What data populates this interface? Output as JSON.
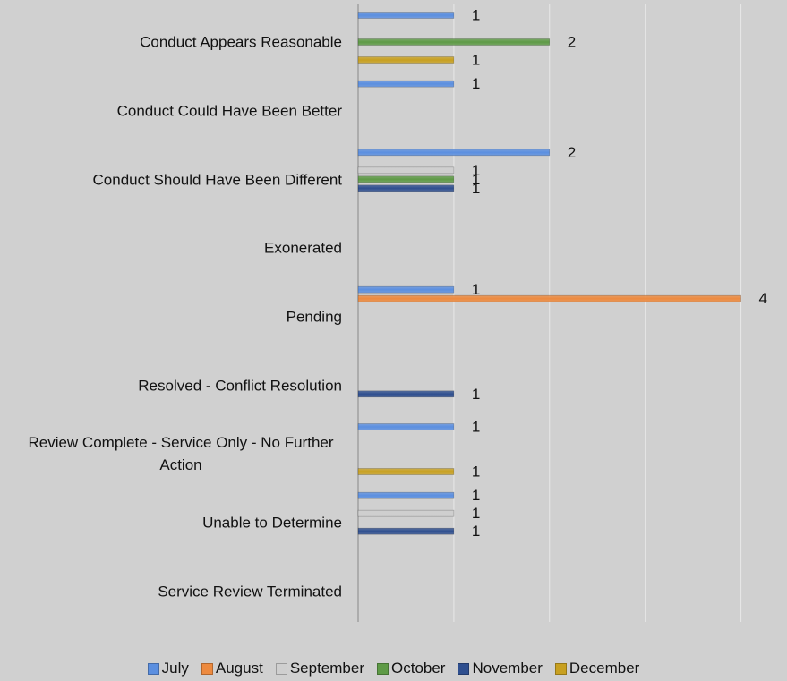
{
  "chart_data": {
    "type": "hbar",
    "categories": [
      "Conduct Appears Reasonable",
      "Conduct Could Have Been Better",
      "Conduct Should Have Been Different",
      "Exonerated",
      "Pending",
      "Resolved - Conflict Resolution",
      "Review Complete - Service Only - No Further Action",
      "Unable to Determine",
      "Service Review Terminated"
    ],
    "series": [
      {
        "name": "July",
        "color": "#5b8fe0",
        "values": [
          1,
          1,
          2,
          null,
          1,
          null,
          1,
          1,
          null
        ]
      },
      {
        "name": "August",
        "color": "#ed8a3f",
        "values": [
          null,
          null,
          null,
          null,
          4,
          null,
          null,
          null,
          null
        ]
      },
      {
        "name": "September",
        "color": "#cfcfcf",
        "values": [
          null,
          null,
          1,
          null,
          null,
          null,
          null,
          1,
          null
        ]
      },
      {
        "name": "October",
        "color": "#5e9a46",
        "values": [
          2,
          null,
          1,
          null,
          null,
          null,
          null,
          null,
          null
        ]
      },
      {
        "name": "November",
        "color": "#2f4f8f",
        "values": [
          null,
          null,
          1,
          null,
          null,
          1,
          null,
          1,
          null
        ]
      },
      {
        "name": "December",
        "color": "#c8a020",
        "values": [
          1,
          null,
          null,
          null,
          null,
          null,
          1,
          null,
          null
        ]
      }
    ],
    "xlim": [
      0,
      4.5
    ],
    "xticks": [
      0,
      1,
      2,
      3,
      4
    ],
    "grid": true,
    "legend": "bottom"
  }
}
